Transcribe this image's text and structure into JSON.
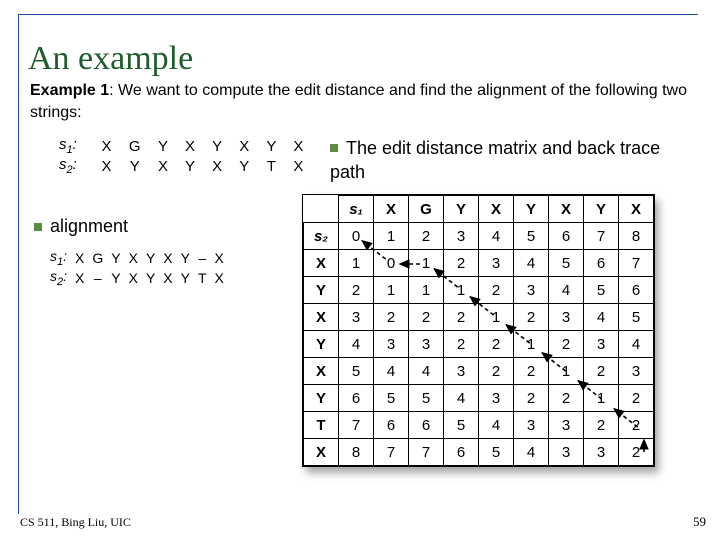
{
  "title": "An example",
  "example_text_prefix": "Example 1",
  "example_text_rest": ": We want to compute the edit distance and find the alignment of the following two strings:",
  "bullet_matrix": "The edit distance matrix and back trace path",
  "bullet_alignment": "alignment",
  "strings": {
    "s1_label": "s",
    "s1_sub": "1",
    "s2_label": "s",
    "s2_sub": "2",
    "s1": [
      "X",
      "G",
      "Y",
      "X",
      "Y",
      "X",
      "Y",
      "X"
    ],
    "s2": [
      "X",
      "Y",
      "X",
      "Y",
      "X",
      "Y",
      "T",
      "X"
    ]
  },
  "alignment": {
    "s1": [
      "X",
      "G",
      "Y",
      "X",
      "Y",
      "X",
      "Y",
      "–",
      "X"
    ],
    "s2": [
      "X",
      "–",
      "Y",
      "X",
      "Y",
      "X",
      "Y",
      "T",
      "X"
    ]
  },
  "matrix": {
    "s1_header": "s₁",
    "s2_header": "s₂",
    "col_labels": [
      "X",
      "G",
      "Y",
      "X",
      "Y",
      "X",
      "Y",
      "X"
    ],
    "row_labels": [
      "X",
      "Y",
      "X",
      "Y",
      "X",
      "Y",
      "T",
      "X"
    ],
    "first_row": [
      0,
      1,
      2,
      3,
      4,
      5,
      6,
      7,
      8
    ],
    "rows": [
      [
        1,
        0,
        1,
        2,
        3,
        4,
        5,
        6,
        7
      ],
      [
        2,
        1,
        1,
        1,
        2,
        3,
        4,
        5,
        6
      ],
      [
        3,
        2,
        2,
        2,
        1,
        2,
        3,
        4,
        5
      ],
      [
        4,
        3,
        3,
        2,
        2,
        1,
        2,
        3,
        4
      ],
      [
        5,
        4,
        4,
        3,
        2,
        2,
        1,
        2,
        3
      ],
      [
        6,
        5,
        5,
        4,
        3,
        2,
        2,
        1,
        2
      ],
      [
        7,
        6,
        6,
        5,
        4,
        3,
        3,
        2,
        2
      ],
      [
        8,
        7,
        7,
        6,
        5,
        4,
        3,
        3,
        2
      ]
    ]
  },
  "trace_path_cells": [
    [
      0,
      0
    ],
    [
      1,
      1
    ],
    [
      1,
      2
    ],
    [
      2,
      3
    ],
    [
      3,
      4
    ],
    [
      4,
      5
    ],
    [
      5,
      6
    ],
    [
      6,
      7
    ],
    [
      7,
      8
    ],
    [
      8,
      8
    ]
  ],
  "footer": "CS 511, Bing Liu, UIC",
  "page_number": "59",
  "colors": {
    "title": "#1f5c2e",
    "bullet": "#5e8c3e",
    "border": "#1a4ea0"
  }
}
